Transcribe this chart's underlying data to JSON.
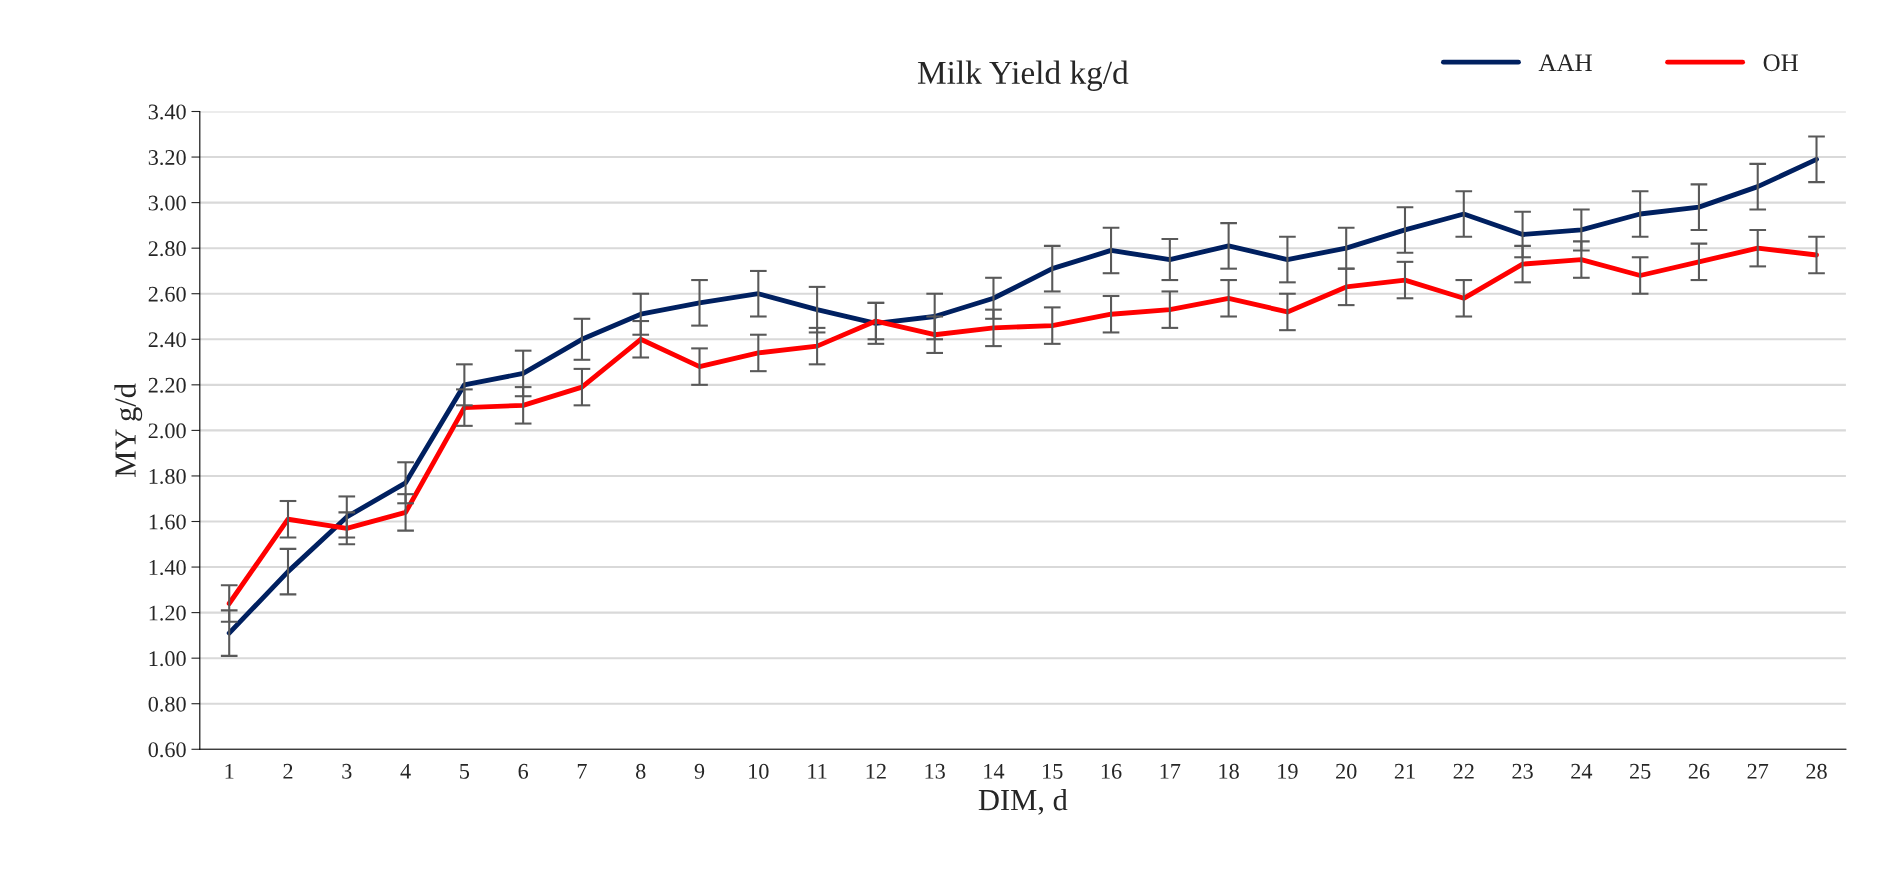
{
  "chart_data": {
    "type": "line",
    "title": "Milk Yield kg/d",
    "xlabel": "DIM, d",
    "ylabel": "MY g/d",
    "categories": [
      "1",
      "2",
      "3",
      "4",
      "5",
      "6",
      "7",
      "8",
      "9",
      "10",
      "11",
      "12",
      "13",
      "14",
      "15",
      "16",
      "17",
      "18",
      "19",
      "20",
      "21",
      "22",
      "23",
      "24",
      "25",
      "26",
      "27",
      "28"
    ],
    "series": [
      {
        "name": "AAH",
        "color": "#002060",
        "values": [
          1.11,
          1.38,
          1.62,
          1.77,
          2.2,
          2.25,
          2.4,
          2.51,
          2.56,
          2.6,
          2.53,
          2.47,
          2.5,
          2.58,
          2.71,
          2.79,
          2.75,
          2.81,
          2.75,
          2.8,
          2.88,
          2.95,
          2.86,
          2.88,
          2.95,
          2.98,
          3.07,
          3.19
        ],
        "errors": [
          0.1,
          0.1,
          0.09,
          0.09,
          0.09,
          0.1,
          0.09,
          0.09,
          0.1,
          0.1,
          0.1,
          0.09,
          0.1,
          0.09,
          0.1,
          0.1,
          0.09,
          0.1,
          0.1,
          0.09,
          0.1,
          0.1,
          0.1,
          0.09,
          0.1,
          0.1,
          0.1,
          0.1
        ]
      },
      {
        "name": "OH",
        "color": "#ff0000",
        "values": [
          1.24,
          1.61,
          1.57,
          1.64,
          2.1,
          2.11,
          2.19,
          2.4,
          2.28,
          2.34,
          2.37,
          2.48,
          2.42,
          2.45,
          2.46,
          2.51,
          2.53,
          2.58,
          2.52,
          2.63,
          2.66,
          2.58,
          2.73,
          2.75,
          2.68,
          2.74,
          2.8,
          2.77
        ],
        "errors": [
          0.08,
          0.08,
          0.07,
          0.08,
          0.08,
          0.08,
          0.08,
          0.08,
          0.08,
          0.08,
          0.08,
          0.08,
          0.08,
          0.08,
          0.08,
          0.08,
          0.08,
          0.08,
          0.08,
          0.08,
          0.08,
          0.08,
          0.08,
          0.08,
          0.08,
          0.08,
          0.08,
          0.08
        ]
      }
    ],
    "ylim": [
      0.6,
      3.4
    ],
    "yticks": [
      {
        "value": 0.6,
        "label": "0.60"
      },
      {
        "value": 0.8,
        "label": "0.80"
      },
      {
        "value": 1.0,
        "label": "1.00"
      },
      {
        "value": 1.2,
        "label": "1.20"
      },
      {
        "value": 1.4,
        "label": "1.40"
      },
      {
        "value": 1.6,
        "label": "1.60"
      },
      {
        "value": 1.8,
        "label": "1.80"
      },
      {
        "value": 2.0,
        "label": "2.00"
      },
      {
        "value": 2.2,
        "label": "2.20"
      },
      {
        "value": 2.4,
        "label": "2.40"
      },
      {
        "value": 2.6,
        "label": "2.60"
      },
      {
        "value": 2.8,
        "label": "2.80"
      },
      {
        "value": 3.0,
        "label": "3.00"
      },
      {
        "value": 3.2,
        "label": "3.20"
      },
      {
        "value": 3.4,
        "label": "3.40"
      }
    ],
    "grid": "y",
    "legend": "top right",
    "marker": "none",
    "line_style": "solid"
  }
}
